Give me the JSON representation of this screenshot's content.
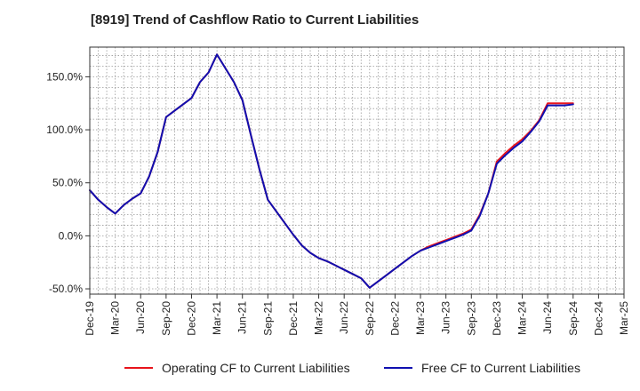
{
  "chart_data": {
    "type": "line",
    "title": "[8919]  Trend of Cashflow Ratio to Current Liabilities",
    "xlabel": "",
    "ylabel": "",
    "ylim": [
      -55,
      178
    ],
    "y_ticks": [
      -50,
      0,
      50,
      100,
      150
    ],
    "y_tick_labels": [
      "-50.0%",
      "0.0%",
      "50.0%",
      "100.0%",
      "150.0%"
    ],
    "x_tick_labels": [
      "Dec-19",
      "Mar-20",
      "Jun-20",
      "Sep-20",
      "Dec-20",
      "Mar-21",
      "Jun-21",
      "Sep-21",
      "Dec-21",
      "Mar-22",
      "Jun-22",
      "Sep-22",
      "Dec-22",
      "Mar-23",
      "Jun-23",
      "Sep-23",
      "Dec-23",
      "Mar-24",
      "Jun-24",
      "Sep-24",
      "Dec-24",
      "Mar-25"
    ],
    "grid": true,
    "legend_position": "bottom",
    "x_months": [
      "Dec-19",
      "Jan-20",
      "Feb-20",
      "Mar-20",
      "Apr-20",
      "May-20",
      "Jun-20",
      "Jul-20",
      "Aug-20",
      "Sep-20",
      "Oct-20",
      "Nov-20",
      "Dec-20",
      "Jan-21",
      "Feb-21",
      "Mar-21",
      "Apr-21",
      "May-21",
      "Jun-21",
      "Jul-21",
      "Aug-21",
      "Sep-21",
      "Oct-21",
      "Nov-21",
      "Dec-21",
      "Jan-22",
      "Feb-22",
      "Mar-22",
      "Apr-22",
      "May-22",
      "Jun-22",
      "Jul-22",
      "Aug-22",
      "Sep-22",
      "Oct-22",
      "Nov-22",
      "Dec-22",
      "Jan-23",
      "Feb-23",
      "Mar-23",
      "Apr-23",
      "May-23",
      "Jun-23",
      "Jul-23",
      "Aug-23",
      "Sep-23",
      "Oct-23",
      "Nov-23",
      "Dec-23",
      "Jan-24",
      "Feb-24",
      "Mar-24",
      "Apr-24",
      "May-24",
      "Jun-24",
      "Jul-24",
      "Aug-24",
      "Sep-24"
    ],
    "series": [
      {
        "name": "Operating CF to Current Liabilities",
        "color": "#e8141c",
        "values": [
          43,
          34,
          27,
          21,
          29,
          35,
          40,
          56,
          79,
          112,
          118,
          124,
          130,
          145,
          154,
          171,
          158,
          145,
          128,
          95,
          63,
          34,
          23,
          12,
          1,
          -9,
          -16,
          -21,
          -24,
          -28,
          -32,
          -36,
          -40,
          -49,
          -43,
          -37,
          -31,
          -25,
          -19,
          -14,
          -10,
          -7,
          -4,
          -1,
          2,
          6,
          20,
          40,
          70,
          78,
          85,
          91,
          99,
          109,
          125,
          125,
          125,
          125
        ]
      },
      {
        "name": "Free CF to Current Liabilities",
        "color": "#1010b0",
        "values": [
          43,
          34,
          27,
          21,
          29,
          35,
          40,
          56,
          79,
          112,
          118,
          124,
          130,
          145,
          154,
          171,
          158,
          145,
          128,
          95,
          63,
          34,
          23,
          12,
          1,
          -9,
          -16,
          -21,
          -24,
          -28,
          -32,
          -36,
          -40,
          -49,
          -43,
          -37,
          -31,
          -25,
          -19,
          -14,
          -11,
          -8,
          -5,
          -2,
          1,
          5,
          19,
          40,
          68,
          76,
          83,
          89,
          98,
          108,
          123,
          123,
          123,
          124
        ]
      }
    ]
  }
}
